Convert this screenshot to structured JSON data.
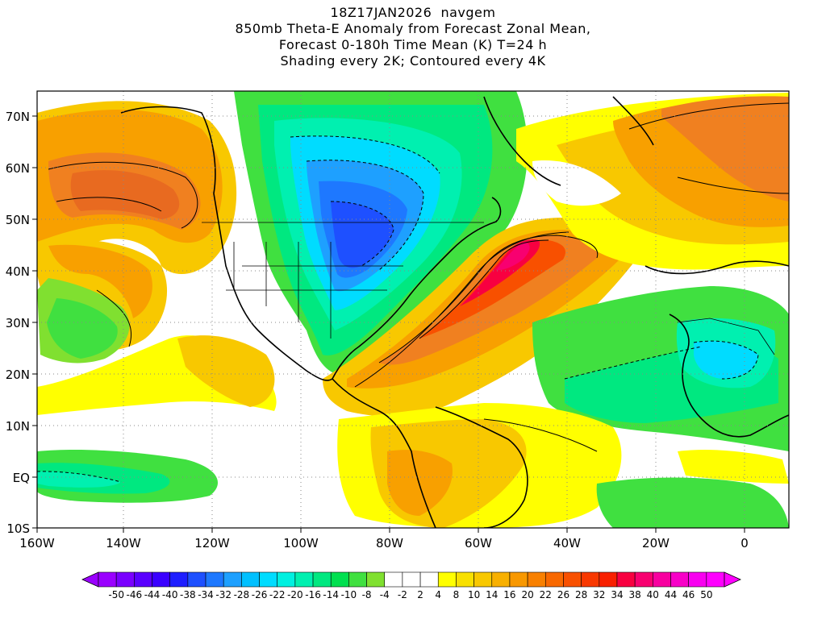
{
  "title": {
    "lines": [
      "18Z17JAN2026  navgem",
      "850mb Theta-E Anomaly from Forecast Zonal Mean,",
      "Forecast 0-180h Time Mean (K) T=24 h",
      "Shading every 2K; Contoured every 4K"
    ]
  },
  "map": {
    "lon_range": [
      -160,
      10
    ],
    "lat_range": [
      -10,
      75
    ],
    "lat_ticks": [
      "70N",
      "60N",
      "50N",
      "40N",
      "30N",
      "20N",
      "10N",
      "EQ",
      "10S"
    ],
    "lon_ticks": [
      "160W",
      "140W",
      "120W",
      "100W",
      "80W",
      "60W",
      "40W",
      "20W",
      "0"
    ],
    "grid": "dotted"
  },
  "colorbar": {
    "labels": [
      "-50",
      "-46",
      "-44",
      "-40",
      "-38",
      "-34",
      "-32",
      "-28",
      "-26",
      "-22",
      "-20",
      "-16",
      "-14",
      "-10",
      "-8",
      "-4",
      "-2",
      "2",
      "4",
      "8",
      "10",
      "14",
      "16",
      "20",
      "22",
      "26",
      "28",
      "32",
      "34",
      "38",
      "40",
      "44",
      "46",
      "50"
    ],
    "colors": [
      "#9a00ff",
      "#7a00ff",
      "#5a00ff",
      "#3a00ff",
      "#1e1eff",
      "#1e50ff",
      "#1e78ff",
      "#1ea0ff",
      "#00c0ff",
      "#00dcff",
      "#00f0e0",
      "#00f0b0",
      "#00e880",
      "#00e050",
      "#40e040",
      "#80e030",
      "#ffffff",
      "#ffffff",
      "#ffffff",
      "#ffff00",
      "#f8e000",
      "#f8c800",
      "#f8b000",
      "#f89800",
      "#f88000",
      "#f86800",
      "#f85000",
      "#f83800",
      "#f82000",
      "#f80040",
      "#f80070",
      "#f800a0",
      "#f800c8",
      "#f800f0",
      "#ff00ff"
    ]
  }
}
